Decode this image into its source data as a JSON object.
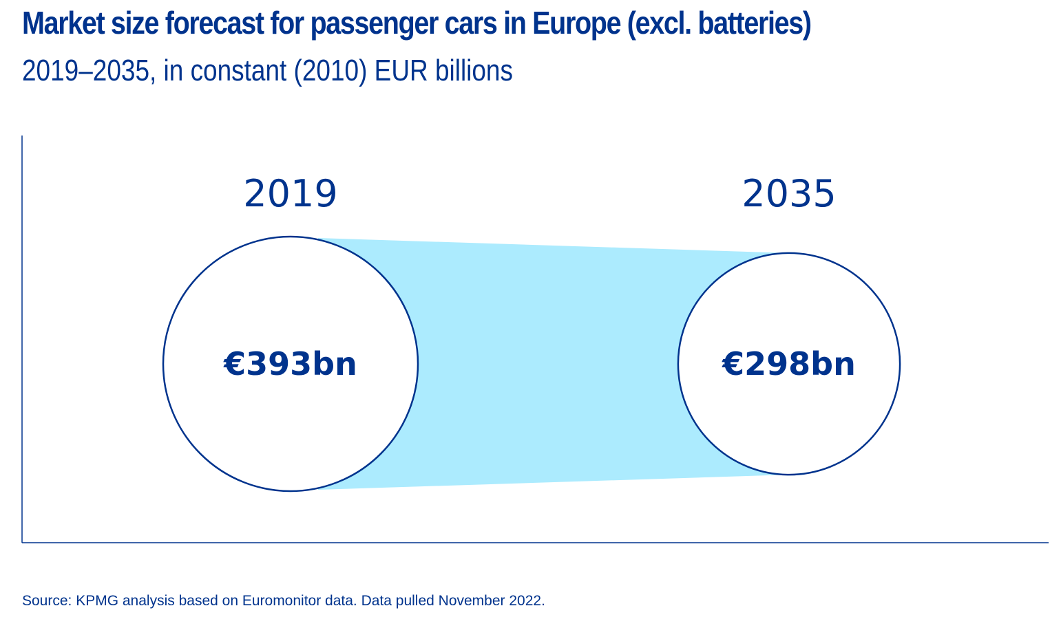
{
  "title": "Market size forecast for passenger cars in Europe (excl. batteries)",
  "subtitle": "2019–2035, in constant (2010) EUR billions",
  "source": "Source: KPMG analysis based on Euromonitor data. Data pulled November 2022.",
  "colors": {
    "primary": "#00338d",
    "connector_fill": "#acebfe",
    "circle_fill": "#ffffff"
  },
  "chart_data": {
    "type": "bubble-comparison",
    "title": "Market size forecast for passenger cars in Europe (excl. batteries)",
    "subtitle": "2019–2035, in constant (2010) EUR billions",
    "unit": "EUR billions (constant 2010)",
    "categories": [
      "2019",
      "2035"
    ],
    "values": [
      393,
      298
    ],
    "labels": [
      "€393bn",
      "€298bn"
    ],
    "xlabel": "",
    "ylabel": "",
    "grid": false,
    "legend": "none"
  }
}
